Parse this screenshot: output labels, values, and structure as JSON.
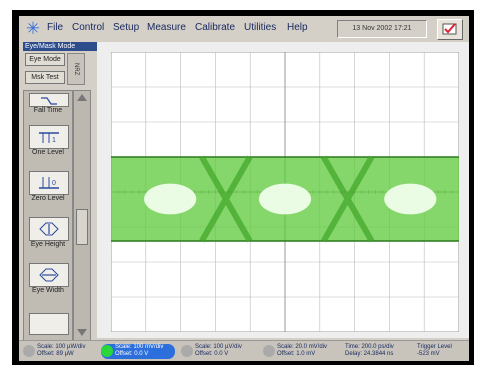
{
  "menubar": {
    "logo_icon": "sun-logo-icon",
    "items": [
      "File",
      "Control",
      "Setup",
      "Measure",
      "Calibrate",
      "Utilities",
      "Help"
    ],
    "datetime": "13 Nov 2002  17:21",
    "check_icon": "checkmark-icon"
  },
  "left_panel": {
    "mode_title": "Eye/Mask Mode",
    "eye_mode_btn": "Eye Mode",
    "mask_test_btn": "Msk Test",
    "nrz_label": "NRZ",
    "tools": [
      {
        "label": "Fall Time",
        "icon": "fall-time-icon"
      },
      {
        "label": "One Level",
        "icon": "one-level-icon"
      },
      {
        "label": "Zero Level",
        "icon": "zero-level-icon"
      },
      {
        "label": "Eye Height",
        "icon": "eye-height-icon"
      },
      {
        "label": "Eye Width",
        "icon": "eye-width-icon"
      }
    ]
  },
  "status_bar": {
    "channels": [
      {
        "scale": "Scale: 100 µW/div",
        "offset": "Offset: 89 µW",
        "active": false
      },
      {
        "scale": "Scale: 100 mV/div",
        "offset": "Offset: 0.0 V",
        "active": true
      },
      {
        "scale": "Scale: 100 µV/div",
        "offset": "Offset: 0.0 V",
        "active": false
      },
      {
        "scale": "Scale: 20.0 mV/div",
        "offset": "Offset: 1.0 mV",
        "active": false
      }
    ],
    "time": {
      "line1": "Time: 200.0 ps/div",
      "line2": "Delay: 24.3844 ns"
    },
    "trigger": {
      "line1": "Trigger Level",
      "line2": "-523 mV"
    }
  },
  "colors": {
    "window_bg": "#d4d0c8",
    "eye_green": "#5ec93a",
    "grid": "#bbbbbb",
    "accent_blue": "#2c6fdc"
  }
}
